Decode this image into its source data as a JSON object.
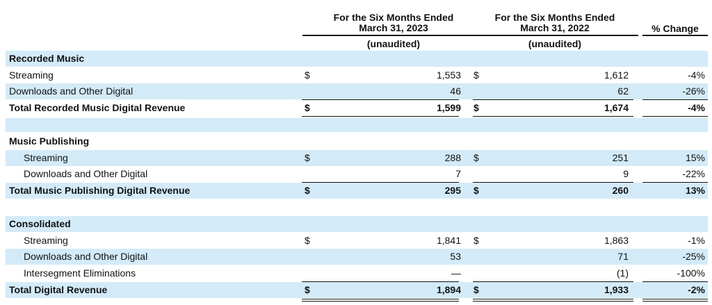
{
  "header": {
    "col1_line1": "For the Six Months Ended",
    "col1_line2": "March 31, 2023",
    "col1_sub": "(unaudited)",
    "col2_line1": "For the Six Months Ended",
    "col2_line2": "March 31, 2022",
    "col2_sub": "(unaudited)",
    "col3": "% Change"
  },
  "rows": [
    {
      "label": "Recorded Music"
    },
    {
      "label": "Streaming",
      "cur1": "$",
      "v1": "1,553",
      "cur2": "$",
      "v2": "1,612",
      "pct": "-4%"
    },
    {
      "label": "Downloads and Other Digital",
      "v1": "46",
      "v2": "62",
      "pct": "-26%"
    },
    {
      "label": "Total Recorded Music Digital Revenue",
      "cur1": "$",
      "v1": "1,599",
      "cur2": "$",
      "v2": "1,674",
      "pct": "-4%"
    },
    {
      "label": ""
    },
    {
      "label": "Music Publishing"
    },
    {
      "label": "Streaming",
      "cur1": "$",
      "v1": "288",
      "cur2": "$",
      "v2": "251",
      "pct": "15%"
    },
    {
      "label": "Downloads and Other Digital",
      "v1": "7",
      "v2": "9",
      "pct": "-22%"
    },
    {
      "label": "Total Music Publishing Digital Revenue",
      "cur1": "$",
      "v1": "295",
      "cur2": "$",
      "v2": "260",
      "pct": "13%"
    },
    {
      "label": ""
    },
    {
      "label": "Consolidated"
    },
    {
      "label": "Streaming",
      "cur1": "$",
      "v1": "1,841",
      "cur2": "$",
      "v2": "1,863",
      "pct": "-1%"
    },
    {
      "label": "Downloads and Other Digital",
      "v1": "53",
      "v2": "71",
      "pct": "-25%"
    },
    {
      "label": "Intersegment Eliminations",
      "v1": "—",
      "v2": "(1)",
      "pct": "-100%"
    },
    {
      "label": "Total Digital Revenue",
      "cur1": "$",
      "v1": "1,894",
      "cur2": "$",
      "v2": "1,933",
      "pct": "-2%"
    }
  ]
}
